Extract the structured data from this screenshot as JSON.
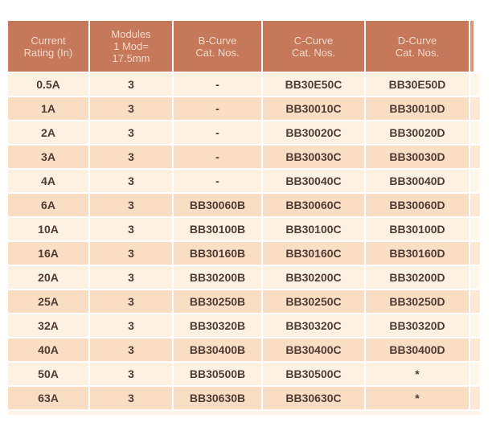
{
  "table": {
    "columns": [
      "Current\nRating (In)",
      "Modules\n1 Mod=\n17.5mm",
      "B-Curve\nCat. Nos.",
      "C-Curve\nCat. Nos.",
      "D-Curve\nCat. Nos."
    ],
    "column_keys": [
      "current-rating",
      "modules",
      "b-curve-cat-no",
      "c-curve-cat-no",
      "d-curve-cat-no"
    ],
    "rows": [
      [
        "0.5A",
        "3",
        "-",
        "BB30E50C",
        "BB30E50D"
      ],
      [
        "1A",
        "3",
        "-",
        "BB30010C",
        "BB30010D"
      ],
      [
        "2A",
        "3",
        "-",
        "BB30020C",
        "BB30020D"
      ],
      [
        "3A",
        "3",
        "-",
        "BB30030C",
        "BB30030D"
      ],
      [
        "4A",
        "3",
        "-",
        "BB30040C",
        "BB30040D"
      ],
      [
        "6A",
        "3",
        "BB30060B",
        "BB30060C",
        "BB30060D"
      ],
      [
        "10A",
        "3",
        "BB30100B",
        "BB30100C",
        "BB30100D"
      ],
      [
        "16A",
        "3",
        "BB30160B",
        "BB30160C",
        "BB30160D"
      ],
      [
        "20A",
        "3",
        "BB30200B",
        "BB30200C",
        "BB30200D"
      ],
      [
        "25A",
        "3",
        "BB30250B",
        "BB30250C",
        "BB30250D"
      ],
      [
        "32A",
        "3",
        "BB30320B",
        "BB30320C",
        "BB30320D"
      ],
      [
        "40A",
        "3",
        "BB30400B",
        "BB30400C",
        "BB30400D"
      ],
      [
        "50A",
        "3",
        "BB30500B",
        "BB30500C",
        "*"
      ],
      [
        "63A",
        "3",
        "BB30630B",
        "BB30630C",
        "*"
      ]
    ]
  },
  "colors": {
    "header_bg": "#C5785A",
    "header_text": "#F4D9CA",
    "header_edge": "#D69878",
    "row_light": "#FDF1E1",
    "row_dark": "#FADEC3",
    "row_light_edge": "#FEF7EC",
    "row_dark_edge": "#FCE8D5",
    "data_text": "#503C33",
    "bottom_edge": "#FEF4E7",
    "separator": "#FFFFFF"
  }
}
